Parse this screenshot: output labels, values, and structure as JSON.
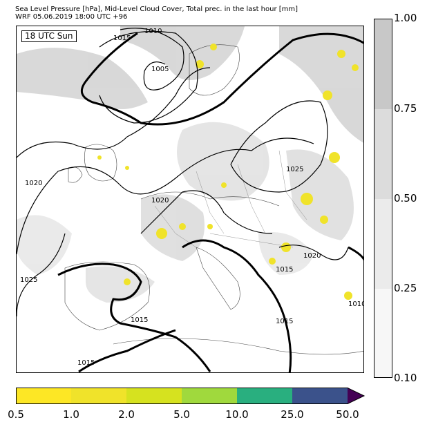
{
  "header": {
    "title_line1": "Sea Level Pressure [hPa], Mid-Level Cloud Cover, Total prec. in the last hour [mm]",
    "title_line2": "WRF 05.06.2019 18:00 UTC +96"
  },
  "map": {
    "time_label": "18 UTC Sun",
    "isobar_labels": [
      "1015",
      "1010",
      "1005",
      "1020",
      "1025",
      "1020",
      "1025",
      "1020",
      "1015",
      "1015",
      "1015",
      "1010",
      "1015"
    ]
  },
  "cloud_cover_colorbar": {
    "ticks": [
      "1.00",
      "0.75",
      "0.50",
      "0.25",
      "0.10"
    ],
    "colors": [
      "#c8c8c8",
      "#dcdcdc",
      "#ebebeb",
      "#f7f7f7"
    ]
  },
  "precip_colorbar": {
    "ticks": [
      "0.5",
      "1.0",
      "2.0",
      "5.0",
      "10.0",
      "25.0",
      "50.0"
    ],
    "colors": [
      "#fde725",
      "#f0e32a",
      "#d6e21f",
      "#a0d93d",
      "#29af7f",
      "#3b528b",
      "#440154"
    ]
  }
}
